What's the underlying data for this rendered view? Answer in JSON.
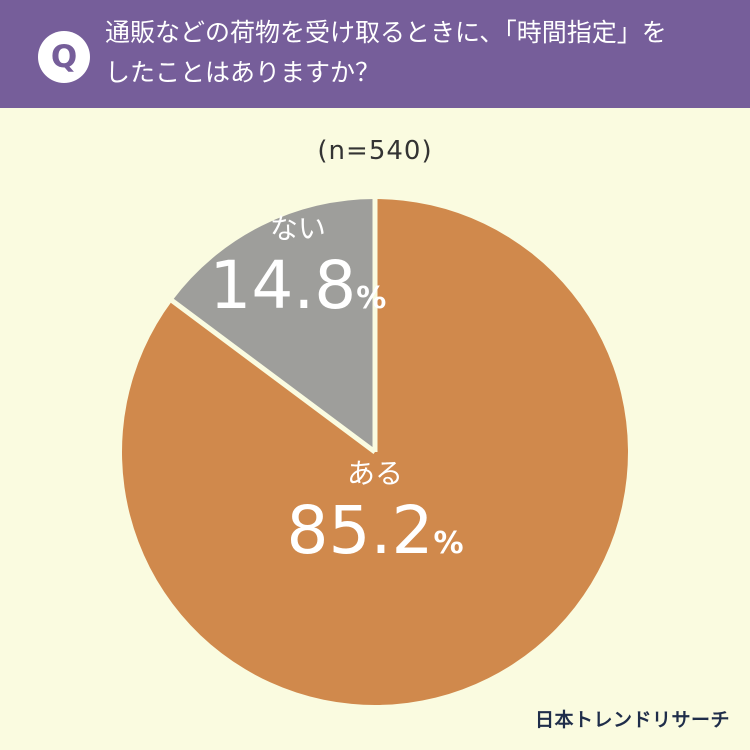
{
  "header": {
    "badge": "Q",
    "question": "通販などの荷物を受け取るときに、「時間指定」を\nしたことはありますか？"
  },
  "sample_label": "(n=540)",
  "brand": "日本トレンドリサーチ",
  "colors": {
    "header_bg": "#765e9a",
    "background": "#fafbe0",
    "slice_aru": "#d0894c",
    "slice_nai": "#9e9e9b",
    "separator": "#fafbe0"
  },
  "chart_data": {
    "type": "pie",
    "title": "",
    "slices": [
      {
        "label": "ある",
        "value": 85.2,
        "value_text": "85.2",
        "unit": "%"
      },
      {
        "label": "ない",
        "value": 14.8,
        "value_text": "14.8",
        "unit": "%"
      }
    ],
    "start_angle_deg": 0,
    "direction": "clockwise"
  }
}
